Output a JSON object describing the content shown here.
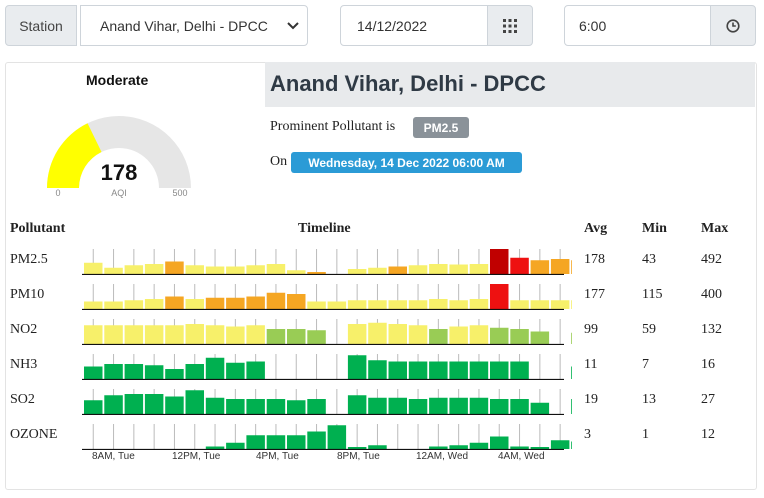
{
  "controls": {
    "station_label": "Station",
    "station_value": "Anand Vihar, Delhi - DPCC",
    "date_value": "14/12/2022",
    "time_value": "6:00"
  },
  "gauge": {
    "category": "Moderate",
    "value": "178",
    "unit_label": "AQI",
    "min_label": "0",
    "max_label": "500",
    "min": 0,
    "max": 500,
    "current": 178,
    "fill_color": "#ffff00",
    "track_color": "#e6e6e6"
  },
  "info": {
    "title": "Anand Vihar, Delhi - DPCC",
    "prominent_text": "Prominent Pollutant is",
    "prominent_pollutant": "PM2.5",
    "on_text": "On",
    "datetime": "Wednesday, 14 Dec 2022 06:00 AM"
  },
  "table": {
    "headers": {
      "pollutant": "Pollutant",
      "timeline": "Timeline",
      "avg": "Avg",
      "min": "Min",
      "max": "Max"
    },
    "rows": [
      {
        "name": "PM2.5",
        "avg": "178",
        "min": "43",
        "max": "492"
      },
      {
        "name": "PM10",
        "avg": "177",
        "min": "115",
        "max": "400"
      },
      {
        "name": "NO2",
        "avg": "99",
        "min": "59",
        "max": "132"
      },
      {
        "name": "NH3",
        "avg": "11",
        "min": "7",
        "max": "16"
      },
      {
        "name": "SO2",
        "avg": "19",
        "min": "13",
        "max": "27"
      },
      {
        "name": "OZONE",
        "avg": "3",
        "min": "1",
        "max": "12"
      }
    ],
    "x_ticks": [
      "8AM, Tue",
      "12PM, Tue",
      "4PM, Tue",
      "8PM, Tue",
      "12AM, Wed",
      "4AM, Wed"
    ]
  },
  "colors": {
    "yellow": "#ffff00",
    "light_yellow": "#f7f06a",
    "orange": "#f5a623",
    "dark_orange": "#e3822a",
    "red": "#ee1111",
    "dark_red": "#c00000",
    "light_green": "#99cc55",
    "green": "#00b050",
    "baseline": "#111111",
    "tick": "#bbbbbb"
  },
  "timelines": [
    {
      "pollutant": "PM2.5",
      "heights": [
        0.45,
        0.25,
        0.35,
        0.4,
        0.5,
        0.35,
        0.3,
        0.3,
        0.35,
        0.4,
        0.15,
        0.05,
        0,
        0.2,
        0.25,
        0.3,
        0.35,
        0.4,
        0.38,
        0.4,
        1.0,
        0.65,
        0.55,
        0.6,
        0.55,
        0.45,
        0.4
      ],
      "colors": [
        "y",
        "y",
        "y",
        "y",
        "o",
        "y",
        "y",
        "y",
        "y",
        "y",
        "y",
        "o",
        "o",
        "y",
        "y",
        "o",
        "y",
        "y",
        "y",
        "y",
        "R",
        "r",
        "o",
        "o",
        "o",
        "o",
        "o"
      ]
    },
    {
      "pollutant": "PM10",
      "heights": [
        0.3,
        0.3,
        0.35,
        0.4,
        0.5,
        0.4,
        0.45,
        0.45,
        0.5,
        0.65,
        0.6,
        0.3,
        0.3,
        0.35,
        0.35,
        0.35,
        0.35,
        0.4,
        0.35,
        0.4,
        1.0,
        0.35,
        0.35,
        0.35,
        0.35,
        0.25,
        0.3
      ],
      "colors": [
        "y",
        "y",
        "y",
        "y",
        "o",
        "y",
        "o",
        "o",
        "o",
        "o",
        "o",
        "y",
        "y",
        "y",
        "y",
        "y",
        "y",
        "y",
        "y",
        "y",
        "r",
        "y",
        "y",
        "y",
        "y",
        "y",
        "y"
      ]
    },
    {
      "pollutant": "NO2",
      "heights": [
        0.75,
        0.75,
        0.75,
        0.75,
        0.75,
        0.8,
        0.75,
        0.7,
        0.75,
        0.6,
        0.6,
        0.55,
        0,
        0.8,
        0.85,
        0.8,
        0.75,
        0.6,
        0.7,
        0.75,
        0.65,
        0.6,
        0.5,
        0,
        0.45,
        0.45,
        0.45
      ],
      "colors": [
        "y",
        "y",
        "y",
        "y",
        "y",
        "y",
        "y",
        "y",
        "y",
        "g",
        "g",
        "g",
        "g",
        "y",
        "y",
        "y",
        "y",
        "g",
        "y",
        "y",
        "g",
        "g",
        "g",
        "g",
        "g",
        "g",
        "g"
      ]
    },
    {
      "pollutant": "NH3",
      "heights": [
        0.5,
        0.6,
        0.6,
        0.55,
        0.4,
        0.6,
        0.85,
        0.65,
        0.7,
        0,
        0,
        0,
        0,
        0.95,
        0.75,
        0.7,
        0.7,
        0.7,
        0.7,
        0.7,
        0.7,
        0.7,
        0,
        0,
        0.5,
        0.5,
        0.5
      ],
      "colors": [
        "G",
        "G",
        "G",
        "G",
        "G",
        "G",
        "G",
        "G",
        "G",
        "G",
        "G",
        "G",
        "G",
        "G",
        "G",
        "G",
        "G",
        "G",
        "G",
        "G",
        "G",
        "G",
        "G",
        "G",
        "G",
        "G",
        "G"
      ]
    },
    {
      "pollutant": "SO2",
      "heights": [
        0.55,
        0.75,
        0.8,
        0.8,
        0.7,
        0.95,
        0.65,
        0.6,
        0.6,
        0.6,
        0.55,
        0.6,
        0,
        0.75,
        0.65,
        0.65,
        0.6,
        0.65,
        0.65,
        0.65,
        0.6,
        0.6,
        0.45,
        0,
        0.6,
        0.6,
        0.6
      ],
      "colors": [
        "G",
        "G",
        "G",
        "G",
        "G",
        "G",
        "G",
        "G",
        "G",
        "G",
        "G",
        "G",
        "G",
        "G",
        "G",
        "G",
        "G",
        "G",
        "G",
        "G",
        "G",
        "G",
        "G",
        "G",
        "G",
        "G",
        "G"
      ]
    },
    {
      "pollutant": "OZONE",
      "heights": [
        0,
        0,
        0,
        0,
        0,
        0,
        0.1,
        0.25,
        0.55,
        0.55,
        0.55,
        0.7,
        0.95,
        0.05,
        0.15,
        0,
        0,
        0.1,
        0.15,
        0.25,
        0.5,
        0.1,
        0.05,
        0.35,
        0.3,
        0.15,
        0.1
      ],
      "colors": [
        "G",
        "G",
        "G",
        "G",
        "G",
        "G",
        "G",
        "G",
        "G",
        "G",
        "G",
        "G",
        "G",
        "G",
        "G",
        "G",
        "G",
        "G",
        "G",
        "G",
        "G",
        "G",
        "G",
        "G",
        "G",
        "G",
        "G"
      ]
    }
  ]
}
